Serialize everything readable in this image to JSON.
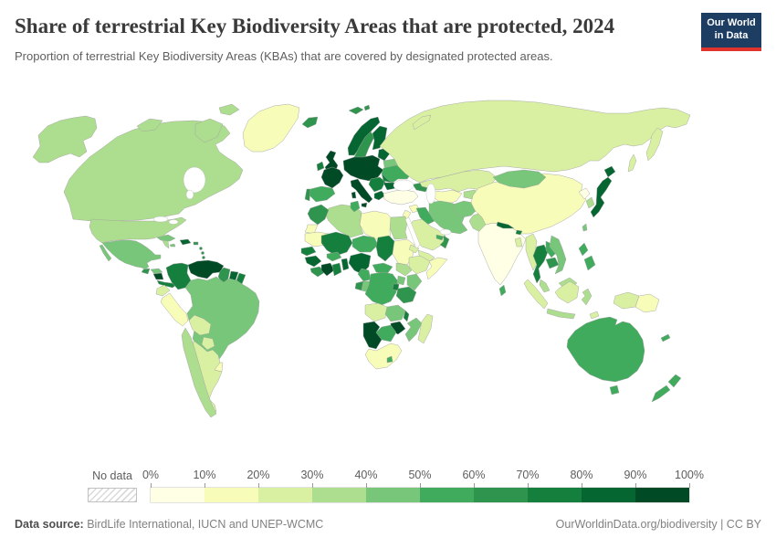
{
  "header": {
    "title": "Share of terrestrial Key Biodiversity Areas that are protected, 2024",
    "subtitle": "Proportion of terrestrial Key Biodiversity Areas (KBAs) that are covered by designated protected areas.",
    "logo": {
      "line1": "Our World",
      "line2": "in Data",
      "bg_color": "#1d3d63",
      "accent_color": "#e0332b"
    }
  },
  "legend": {
    "no_data_label": "No data",
    "tick_labels": [
      "0%",
      "10%",
      "20%",
      "30%",
      "40%",
      "50%",
      "60%",
      "70%",
      "80%",
      "90%",
      "100%"
    ]
  },
  "footer": {
    "source_label": "Data source:",
    "source_text": " BirdLife International, IUCN and UNEP-WCMC",
    "credit_text": "OurWorldinData.org/biodiversity | CC BY"
  },
  "colors": {
    "palette": [
      "#ffffe5",
      "#f7fcb9",
      "#d9f0a3",
      "#addd8e",
      "#78c679",
      "#41ab5d",
      "#2f944e",
      "#15803d",
      "#066632",
      "#004a26"
    ],
    "border": "#a3a3a3",
    "ocean": "#ffffff"
  },
  "map": {
    "regions": {
      "greenland": 1,
      "canada": 3,
      "usa": 3,
      "mexico": 4,
      "guatemala": 6,
      "honduras": 4,
      "nicaragua": 9,
      "costa-rica-panama": 7,
      "cuba": 4,
      "jamaica": 4,
      "hispaniola": 8,
      "puerto-rico": 6,
      "lesser-antilles": 6,
      "colombia": 7,
      "venezuela": 9,
      "guyana": 6,
      "suriname": 8,
      "french-guiana": 7,
      "ecuador": 2,
      "peru": 1,
      "brazil": 4,
      "bolivia": 2,
      "paraguay": 2,
      "uruguay": 1,
      "argentina": 2,
      "chile": 3,
      "iceland": 6,
      "svalbard": 6,
      "uk": 9,
      "ireland": 7,
      "norway": 8,
      "sweden": 6,
      "finland": 8,
      "denmark": 8,
      "baltics": 8,
      "belarus": 4,
      "central-europe": 9,
      "france": 9,
      "spain": 5,
      "portugal": 6,
      "italy": 9,
      "balkans": 7,
      "greece": 8,
      "romania": 7,
      "bulgaria": 8,
      "ukraine": 5,
      "russia": 2,
      "caucasus": 6,
      "turkey": 0,
      "syria": 1,
      "jordan-israel": 1,
      "iraq": 5,
      "iran": 4,
      "saudi-arabia": 2,
      "yemen": 2,
      "oman": 6,
      "uae": 5,
      "egypt": 3,
      "libya": 1,
      "algeria": 3,
      "tunisia": 5,
      "morocco": 6,
      "western-sahara": 1,
      "mauritania": 1,
      "mali": 7,
      "niger": 5,
      "chad": 7,
      "sudan": 1,
      "eritrea": 2,
      "ethiopia": 2,
      "somalia": 1,
      "senegal": 7,
      "guinea": 8,
      "sierra-leone-liberia": 6,
      "ivory-coast": 9,
      "ghana": 7,
      "burkina-faso": 5,
      "togo-benin": 8,
      "nigeria": 8,
      "cameroon": 5,
      "central-african-republic": 5,
      "south-sudan": 3,
      "gabon": 6,
      "congo": 4,
      "dr-congo": 5,
      "uganda": 4,
      "kenya": 4,
      "tanzania": 6,
      "rwanda-burundi": 7,
      "angola": 2,
      "zambia": 4,
      "malawi": 7,
      "mozambique": 4,
      "zimbabwe": 9,
      "botswana": 5,
      "namibia": 9,
      "south-africa": 1,
      "lesotho": 5,
      "madagascar": 2,
      "kazakhstan": 2,
      "uzbekistan-turkmenistan": 1,
      "kyrgyzstan-tajikistan": 3,
      "afghanistan": 4,
      "pakistan": 3,
      "india": 0,
      "nepal": 8,
      "bhutan": 7,
      "bangladesh": 2,
      "sri-lanka": 5,
      "china": 1,
      "mongolia": 4,
      "north-korea": 0,
      "south-korea": 3,
      "japan": 8,
      "taiwan": 4,
      "myanmar": 2,
      "thailand": 7,
      "laos": 5,
      "cambodia": 6,
      "vietnam": 4,
      "malaysia": 3,
      "indonesia": 2,
      "indonesia-java": 3,
      "indonesia-sulawesi": 3,
      "timor-leste": 2,
      "west-papua": 2,
      "papua-new-guinea": 1,
      "philippines": 5,
      "australia": 5,
      "new-zealand": 5,
      "new-caledonia": 5
    }
  },
  "chart_data": {
    "type": "choropleth",
    "title": "Share of terrestrial Key Biodiversity Areas that are protected, 2024",
    "subtitle": "Proportion of terrestrial Key Biodiversity Areas (KBAs) that are covered by designated protected areas.",
    "year": 2024,
    "unit": "% of terrestrial KBAs covered by protected areas",
    "legend_position": "bottom",
    "bins": [
      "0-10%",
      "10-20%",
      "20-30%",
      "30-40%",
      "40-50%",
      "50-60%",
      "60-70%",
      "70-80%",
      "80-90%",
      "90-100%"
    ],
    "bin_colors": [
      "#ffffe5",
      "#f7fcb9",
      "#d9f0a3",
      "#addd8e",
      "#78c679",
      "#41ab5d",
      "#2f944e",
      "#15803d",
      "#066632",
      "#004a26"
    ],
    "no_data": {
      "label": "No data",
      "pattern": "gray-diagonal-hatch"
    },
    "regions": {
      "United States": "30-40%",
      "Canada": "30-40%",
      "Greenland": "10-20%",
      "Mexico": "40-50%",
      "Guatemala": "60-70%",
      "Honduras": "40-50%",
      "Nicaragua": "90-100%",
      "Costa Rica & Panama": "70-80%",
      "Cuba": "40-50%",
      "Jamaica": "40-50%",
      "Haiti & Dominican Republic": "80-90%",
      "Puerto Rico": "60-70%",
      "Lesser Antilles": "60-70%",
      "Colombia": "70-80%",
      "Venezuela": "90-100%",
      "Guyana": "60-70%",
      "Suriname": "80-90%",
      "French Guiana": "70-80%",
      "Ecuador": "20-30%",
      "Peru": "10-20%",
      "Brazil": "40-50%",
      "Bolivia": "20-30%",
      "Paraguay": "20-30%",
      "Uruguay": "10-20%",
      "Argentina": "20-30%",
      "Chile": "30-40%",
      "Iceland": "60-70%",
      "Svalbard": "60-70%",
      "United Kingdom": "90-100%",
      "Ireland": "70-80%",
      "Norway": "80-90%",
      "Sweden": "60-70%",
      "Finland": "80-90%",
      "Denmark": "80-90%",
      "Baltic states": "80-90%",
      "Belarus": "40-50%",
      "Central Europe": "90-100%",
      "France": "90-100%",
      "Spain": "50-60%",
      "Portugal": "60-70%",
      "Italy": "90-100%",
      "Balkans": "70-80%",
      "Greece": "80-90%",
      "Romania": "70-80%",
      "Bulgaria": "80-90%",
      "Ukraine": "50-60%",
      "Russia": "20-30%",
      "Caucasus": "60-70%",
      "Turkey": "0-10%",
      "Syria": "10-20%",
      "Jordan & Israel": "10-20%",
      "Iraq": "50-60%",
      "Iran": "40-50%",
      "Saudi Arabia": "20-30%",
      "Yemen": "20-30%",
      "Oman": "60-70%",
      "United Arab Emirates": "50-60%",
      "Egypt": "30-40%",
      "Libya": "10-20%",
      "Algeria": "30-40%",
      "Tunisia": "50-60%",
      "Morocco": "60-70%",
      "Western Sahara": "10-20%",
      "Mauritania": "10-20%",
      "Mali": "70-80%",
      "Niger": "50-60%",
      "Chad": "70-80%",
      "Sudan": "10-20%",
      "Eritrea": "20-30%",
      "Ethiopia": "20-30%",
      "Somalia": "10-20%",
      "Senegal": "70-80%",
      "Guinea": "80-90%",
      "Sierra Leone & Liberia": "60-70%",
      "Cote d'Ivoire": "90-100%",
      "Ghana": "70-80%",
      "Burkina Faso": "50-60%",
      "Togo & Benin": "80-90%",
      "Nigeria": "80-90%",
      "Cameroon": "50-60%",
      "Central African Republic": "50-60%",
      "South Sudan": "30-40%",
      "Gabon": "60-70%",
      "Congo": "40-50%",
      "DR Congo": "50-60%",
      "Uganda": "40-50%",
      "Kenya": "40-50%",
      "Tanzania": "60-70%",
      "Rwanda & Burundi": "70-80%",
      "Angola": "20-30%",
      "Zambia": "40-50%",
      "Malawi": "70-80%",
      "Mozambique": "40-50%",
      "Zimbabwe": "90-100%",
      "Botswana": "50-60%",
      "Namibia": "90-100%",
      "South Africa": "10-20%",
      "Lesotho": "50-60%",
      "Madagascar": "20-30%",
      "Kazakhstan": "20-30%",
      "Uzbekistan & Turkmenistan": "10-20%",
      "Kyrgyzstan & Tajikistan": "30-40%",
      "Afghanistan": "40-50%",
      "Pakistan": "30-40%",
      "India": "0-10%",
      "Nepal": "80-90%",
      "Bhutan": "70-80%",
      "Bangladesh": "20-30%",
      "Sri Lanka": "50-60%",
      "China": "10-20%",
      "Mongolia": "40-50%",
      "North Korea": "0-10%",
      "South Korea": "30-40%",
      "Japan": "80-90%",
      "Taiwan": "40-50%",
      "Myanmar": "20-30%",
      "Thailand": "70-80%",
      "Laos": "50-60%",
      "Cambodia": "60-70%",
      "Vietnam": "40-50%",
      "Malaysia": "30-40%",
      "Indonesia": "20-30%",
      "Timor-Leste": "20-30%",
      "Papua New Guinea": "10-20%",
      "Philippines": "50-60%",
      "Australia": "50-60%",
      "New Zealand": "50-60%",
      "New Caledonia": "50-60%"
    }
  }
}
